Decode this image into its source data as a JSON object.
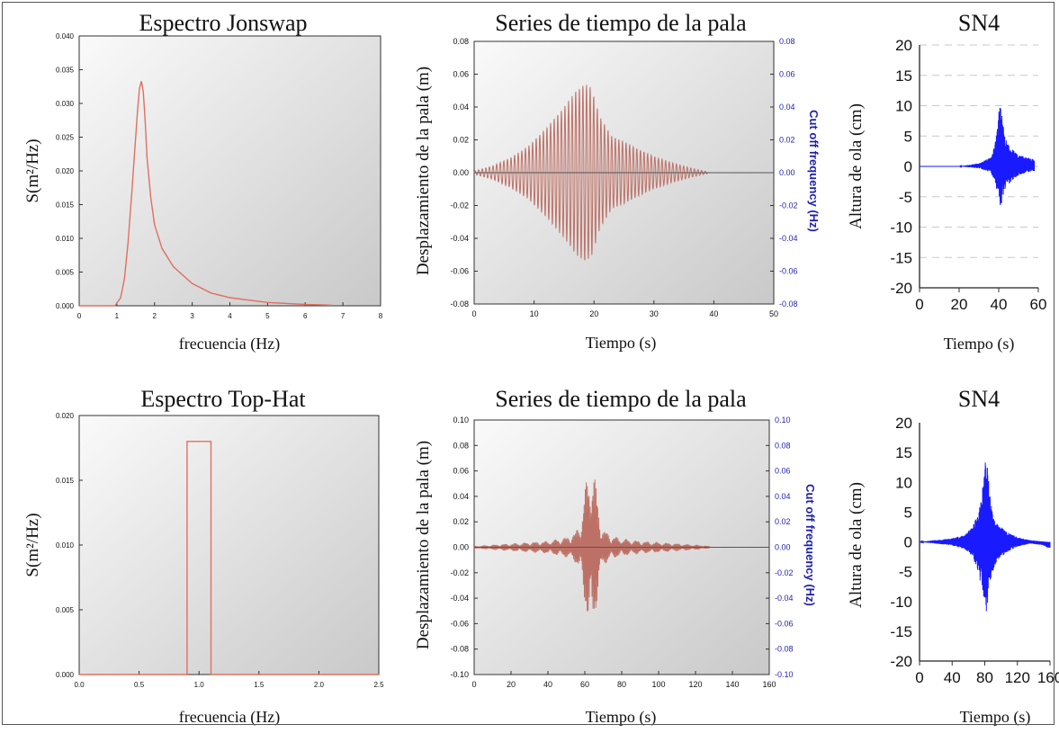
{
  "colors": {
    "spectrum_line": "#e07060",
    "paddle_fill": "#b86458",
    "paddle_line": "#8a4a40",
    "wave_line": "#1a1aff",
    "right_axis_label": "#1f1fb0",
    "plot_bg_light": "#fafafa",
    "plot_bg_dark": "#c8c8c8",
    "grid_dash": "#c8c8c8"
  },
  "chart_data": [
    {
      "id": "p1",
      "type": "line",
      "title": "Espectro Jonswap",
      "xlabel": "frecuencia (Hz)",
      "ylabel": "S(m²/Hz)",
      "xlim": [
        0,
        8
      ],
      "ylim": [
        0,
        0.04
      ],
      "xticks": [
        "0",
        "1",
        "2",
        "3",
        "4",
        "5",
        "6",
        "7",
        "8"
      ],
      "yticks": [
        "0.000",
        "0.005",
        "0.010",
        "0.015",
        "0.020",
        "0.025",
        "0.030",
        "0.035",
        "0.040"
      ],
      "grid": false,
      "series": [
        {
          "x": [
            0,
            0.95,
            1.1,
            1.2,
            1.3,
            1.4,
            1.5,
            1.55,
            1.6,
            1.65,
            1.7,
            1.75,
            1.8,
            1.9,
            2.0,
            2.2,
            2.5,
            3.0,
            3.5,
            4.0,
            5.0,
            6.0,
            6.7
          ],
          "y": [
            0,
            0,
            0.0012,
            0.004,
            0.0095,
            0.017,
            0.025,
            0.029,
            0.0322,
            0.0333,
            0.0318,
            0.0275,
            0.022,
            0.016,
            0.012,
            0.0085,
            0.0058,
            0.0033,
            0.0019,
            0.0012,
            0.0005,
            0.0002,
            0.0001
          ]
        }
      ]
    },
    {
      "id": "p2",
      "type": "line",
      "title": "Series de tiempo de la pala",
      "xlabel": "Tiempo (s)",
      "ylabel": "Desplazamiento  de la pala (m)",
      "ylabel_right": "Cut off frequency (Hz)",
      "xlim": [
        0,
        50
      ],
      "ylim": [
        -0.08,
        0.08
      ],
      "xticks": [
        "0",
        "10",
        "20",
        "30",
        "40",
        "50"
      ],
      "yticks": [
        "-0.08",
        "-0.06",
        "-0.04",
        "-0.02",
        "0.00",
        "0.02",
        "0.04",
        "0.06",
        "0.08"
      ],
      "yticks_right": [
        "-0.08",
        "-0.06",
        "-0.04",
        "-0.02",
        "0.00",
        "0.02",
        "0.04",
        "0.06",
        "0.08"
      ],
      "grid": false,
      "envelope": {
        "t": [
          0,
          3,
          6,
          9,
          12,
          15,
          17,
          18.5,
          19.5,
          21,
          23,
          25,
          27,
          30,
          33,
          36,
          39
        ],
        "a": [
          0.001,
          0.004,
          0.009,
          0.016,
          0.027,
          0.04,
          0.05,
          0.054,
          0.052,
          0.034,
          0.022,
          0.019,
          0.015,
          0.01,
          0.006,
          0.003,
          0.0005
        ]
      },
      "period_s": 0.6,
      "series": []
    },
    {
      "id": "p3",
      "type": "line",
      "title": "SN4",
      "xlabel": "Tiempo (s)",
      "ylabel": "Altura de ola  (cm)",
      "xlim": [
        0,
        60
      ],
      "ylim": [
        -20,
        20
      ],
      "xticks": [
        "0",
        "20",
        "40",
        "60"
      ],
      "yticks": [
        "-20",
        "-15",
        "-10",
        "-5",
        "0",
        "5",
        "10",
        "15",
        "20"
      ],
      "grid": true,
      "envelope": {
        "t": [
          0,
          20,
          30,
          36,
          38,
          39.5,
          40.5,
          41.5,
          43,
          46,
          50,
          54,
          58
        ],
        "hi": [
          0,
          0,
          0.5,
          1.5,
          3.5,
          7,
          12,
          9,
          5,
          3,
          2,
          1.5,
          1.2
        ],
        "lo": [
          0,
          0,
          -0.3,
          -1,
          -2.5,
          -5,
          -7,
          -6,
          -4,
          -2.5,
          -1.5,
          -1,
          -0.8
        ]
      },
      "series": []
    },
    {
      "id": "p4",
      "type": "line",
      "title": "Espectro Top-Hat",
      "xlabel": "frecuencia (Hz)",
      "ylabel": "S(m²/Hz)",
      "xlim": [
        0,
        2.5
      ],
      "ylim": [
        0,
        0.02
      ],
      "xticks": [
        "0.0",
        "0.5",
        "1.0",
        "1.5",
        "2.0",
        "2.5"
      ],
      "yticks": [
        "0.000",
        "0.005",
        "0.010",
        "0.015",
        "0.020"
      ],
      "grid": false,
      "series": [
        {
          "x": [
            0,
            0.9,
            0.9,
            1.1,
            1.1,
            2.5
          ],
          "y": [
            0,
            0,
            0.018,
            0.018,
            0,
            0
          ]
        }
      ]
    },
    {
      "id": "p5",
      "type": "line",
      "title": "Series de tiempo de la pala",
      "xlabel": "Tiempo (s)",
      "ylabel": "Desplazamiento  de la pala (m)",
      "ylabel_right": "Cut off frequency (Hz)",
      "xlim": [
        0,
        160
      ],
      "ylim": [
        -0.1,
        0.1
      ],
      "xticks": [
        "0",
        "20",
        "40",
        "60",
        "80",
        "100",
        "120",
        "140",
        "160"
      ],
      "yticks": [
        "-0.10",
        "-0.08",
        "-0.06",
        "-0.04",
        "-0.02",
        "0.00",
        "0.02",
        "0.04",
        "0.06",
        "0.08",
        "0.10"
      ],
      "yticks_right": [
        "-0.10",
        "-0.08",
        "-0.06",
        "-0.04",
        "-0.02",
        "0.00",
        "0.02",
        "0.04",
        "0.06",
        "0.08",
        "0.10"
      ],
      "grid": false,
      "envelope": {
        "t": [
          0,
          10,
          20,
          30,
          40,
          50,
          55,
          58,
          60,
          62,
          64,
          66,
          68,
          70,
          75,
          80,
          90,
          100,
          110,
          120,
          125,
          128
        ],
        "a": [
          0.001,
          0.002,
          0.003,
          0.004,
          0.005,
          0.008,
          0.012,
          0.022,
          0.045,
          0.062,
          0.068,
          0.05,
          0.025,
          0.014,
          0.009,
          0.007,
          0.005,
          0.004,
          0.003,
          0.002,
          0.0015,
          0.0005
        ]
      },
      "beat_period_s": 5.5,
      "series": []
    },
    {
      "id": "p6",
      "type": "line",
      "title": "SN4",
      "xlabel": "Tiempo (s)",
      "ylabel": "Altura de ola  (cm)",
      "xlim": [
        0,
        160
      ],
      "ylim": [
        -20,
        20
      ],
      "xticks": [
        "0",
        "40",
        "80",
        "120",
        "160"
      ],
      "yticks": [
        "-20",
        "-15",
        "-10",
        "-5",
        "0",
        "5",
        "10",
        "15",
        "20"
      ],
      "grid": false,
      "envelope": {
        "t": [
          0,
          20,
          40,
          55,
          65,
          72,
          78,
          82,
          86,
          92,
          100,
          110,
          120,
          135,
          150,
          158,
          165
        ],
        "hi": [
          0,
          0.3,
          0.6,
          1.2,
          2.5,
          5,
          10,
          15,
          8,
          4,
          2.5,
          1.5,
          0.8,
          0.3,
          0.1,
          0,
          0
        ],
        "lo": [
          0,
          -0.3,
          -0.6,
          -1.2,
          -2.5,
          -5,
          -9,
          -12,
          -7,
          -4,
          -2.5,
          -1.5,
          -0.8,
          -0.3,
          -0.5,
          -1,
          -1
        ]
      },
      "series": []
    }
  ]
}
